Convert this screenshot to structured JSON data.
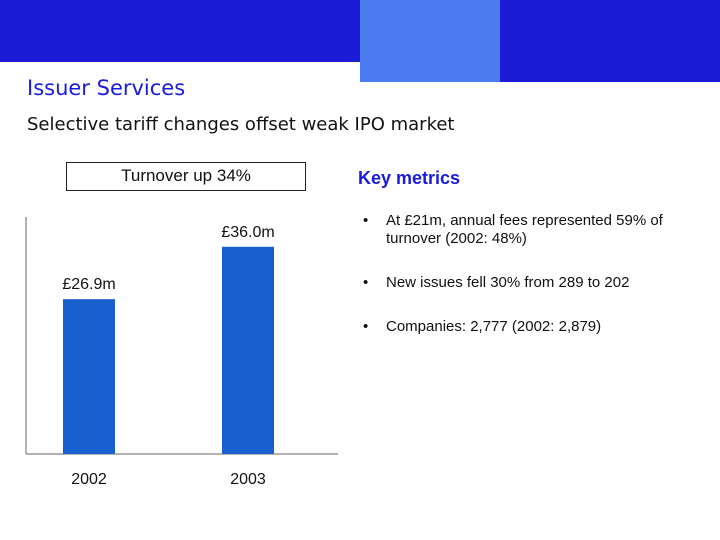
{
  "header": {
    "title": "Issuer Services",
    "subtitle": "Selective tariff changes offset weak IPO market",
    "colors": {
      "navy": "#1c1cd6",
      "light_blue": "#4a7cf0",
      "title_blue": "#1a1ae0"
    }
  },
  "chart_data": {
    "type": "bar",
    "title": "Turnover up 34%",
    "categories": [
      "2002",
      "2003"
    ],
    "values": [
      26.9,
      36.0
    ],
    "data_labels": [
      "£26.9m",
      "£36.0m"
    ],
    "ylim": [
      0,
      45
    ],
    "bar_color": "#1a5fd0",
    "grid": false
  },
  "metrics": {
    "heading": "Key metrics",
    "bullet_glyph": "•",
    "items": [
      "At £21m, annual fees represented 59% of turnover (2002: 48%)",
      "New issues fell 30% from 289 to 202",
      "Companies: 2,777 (2002: 2,879)"
    ]
  }
}
